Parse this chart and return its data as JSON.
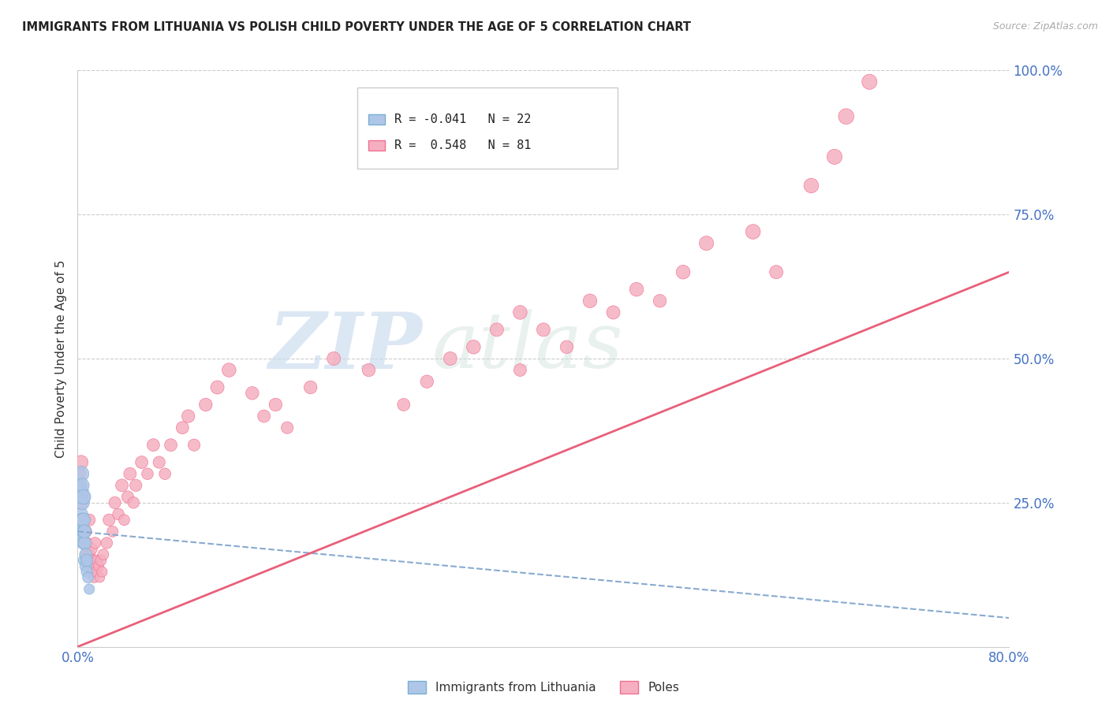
{
  "title": "IMMIGRANTS FROM LITHUANIA VS POLISH CHILD POVERTY UNDER THE AGE OF 5 CORRELATION CHART",
  "source": "Source: ZipAtlas.com",
  "ylabel": "Child Poverty Under the Age of 5",
  "xlim": [
    0.0,
    0.8
  ],
  "ylim": [
    0.0,
    1.0
  ],
  "xticks": [
    0.0,
    0.2,
    0.4,
    0.6,
    0.8
  ],
  "xticklabels": [
    "0.0%",
    "",
    "",
    "",
    "80.0%"
  ],
  "yticks": [
    0.0,
    0.25,
    0.5,
    0.75,
    1.0
  ],
  "yticklabels": [
    "",
    "25.0%",
    "50.0%",
    "75.0%",
    "100.0%"
  ],
  "watermark_zip": "ZIP",
  "watermark_atlas": "atlas",
  "legend_entries": [
    "Immigrants from Lithuania",
    "Poles"
  ],
  "series1_R": -0.041,
  "series1_N": 22,
  "series2_R": 0.548,
  "series2_N": 81,
  "series1_color": "#aec6e8",
  "series2_color": "#f5afc0",
  "series1_edge_color": "#7aafd4",
  "series2_edge_color": "#f07090",
  "series1_line_color": "#88aad0",
  "series2_line_color": "#e8607a",
  "background_color": "#ffffff",
  "grid_color": "#cccccc",
  "title_color": "#222222",
  "axis_label_color": "#333333",
  "tick_label_color": "#4472c4",
  "source_color": "#aaaaaa",
  "legend_border_color": "#cccccc",
  "series1_x": [
    0.001,
    0.002,
    0.002,
    0.003,
    0.003,
    0.003,
    0.004,
    0.004,
    0.004,
    0.005,
    0.005,
    0.005,
    0.005,
    0.006,
    0.006,
    0.006,
    0.007,
    0.007,
    0.008,
    0.008,
    0.009,
    0.01
  ],
  "series1_y": [
    0.28,
    0.2,
    0.26,
    0.23,
    0.27,
    0.3,
    0.22,
    0.25,
    0.28,
    0.18,
    0.2,
    0.22,
    0.26,
    0.15,
    0.18,
    0.2,
    0.14,
    0.16,
    0.13,
    0.15,
    0.12,
    0.1
  ],
  "series1_sizes": [
    180,
    160,
    170,
    150,
    180,
    200,
    160,
    170,
    160,
    140,
    150,
    160,
    180,
    130,
    140,
    150,
    120,
    130,
    110,
    120,
    100,
    90
  ],
  "series2_x": [
    0.001,
    0.002,
    0.003,
    0.003,
    0.004,
    0.005,
    0.005,
    0.006,
    0.006,
    0.007,
    0.007,
    0.008,
    0.008,
    0.009,
    0.01,
    0.01,
    0.011,
    0.012,
    0.012,
    0.013,
    0.014,
    0.015,
    0.015,
    0.016,
    0.017,
    0.018,
    0.019,
    0.02,
    0.021,
    0.022,
    0.025,
    0.027,
    0.03,
    0.032,
    0.035,
    0.038,
    0.04,
    0.043,
    0.045,
    0.048,
    0.05,
    0.055,
    0.06,
    0.065,
    0.07,
    0.075,
    0.08,
    0.09,
    0.095,
    0.1,
    0.11,
    0.12,
    0.13,
    0.15,
    0.16,
    0.17,
    0.18,
    0.2,
    0.22,
    0.25,
    0.28,
    0.3,
    0.32,
    0.34,
    0.36,
    0.38,
    0.38,
    0.4,
    0.42,
    0.44,
    0.46,
    0.48,
    0.5,
    0.52,
    0.54,
    0.58,
    0.6,
    0.63,
    0.65,
    0.66,
    0.68
  ],
  "series2_y": [
    0.3,
    0.28,
    0.25,
    0.32,
    0.22,
    0.2,
    0.26,
    0.18,
    0.22,
    0.16,
    0.2,
    0.15,
    0.18,
    0.14,
    0.16,
    0.22,
    0.14,
    0.13,
    0.17,
    0.15,
    0.12,
    0.14,
    0.18,
    0.13,
    0.15,
    0.14,
    0.12,
    0.15,
    0.13,
    0.16,
    0.18,
    0.22,
    0.2,
    0.25,
    0.23,
    0.28,
    0.22,
    0.26,
    0.3,
    0.25,
    0.28,
    0.32,
    0.3,
    0.35,
    0.32,
    0.3,
    0.35,
    0.38,
    0.4,
    0.35,
    0.42,
    0.45,
    0.48,
    0.44,
    0.4,
    0.42,
    0.38,
    0.45,
    0.5,
    0.48,
    0.42,
    0.46,
    0.5,
    0.52,
    0.55,
    0.58,
    0.48,
    0.55,
    0.52,
    0.6,
    0.58,
    0.62,
    0.6,
    0.65,
    0.7,
    0.72,
    0.65,
    0.8,
    0.85,
    0.92,
    0.98
  ],
  "series2_sizes": [
    160,
    140,
    150,
    160,
    130,
    120,
    140,
    110,
    130,
    100,
    120,
    100,
    110,
    100,
    110,
    120,
    100,
    90,
    110,
    100,
    90,
    100,
    110,
    90,
    100,
    90,
    80,
    100,
    90,
    100,
    110,
    120,
    100,
    120,
    110,
    130,
    100,
    120,
    130,
    110,
    120,
    130,
    110,
    130,
    120,
    110,
    130,
    130,
    140,
    120,
    140,
    150,
    160,
    140,
    130,
    140,
    120,
    140,
    150,
    140,
    130,
    140,
    150,
    160,
    150,
    160,
    130,
    150,
    140,
    160,
    150,
    160,
    140,
    160,
    170,
    180,
    150,
    180,
    190,
    200,
    190
  ],
  "trend1_x0": 0.0,
  "trend1_x1": 0.8,
  "trend1_y0": 0.2,
  "trend1_y1": 0.05,
  "trend2_x0": 0.0,
  "trend2_x1": 0.8,
  "trend2_y0": 0.0,
  "trend2_y1": 0.65
}
